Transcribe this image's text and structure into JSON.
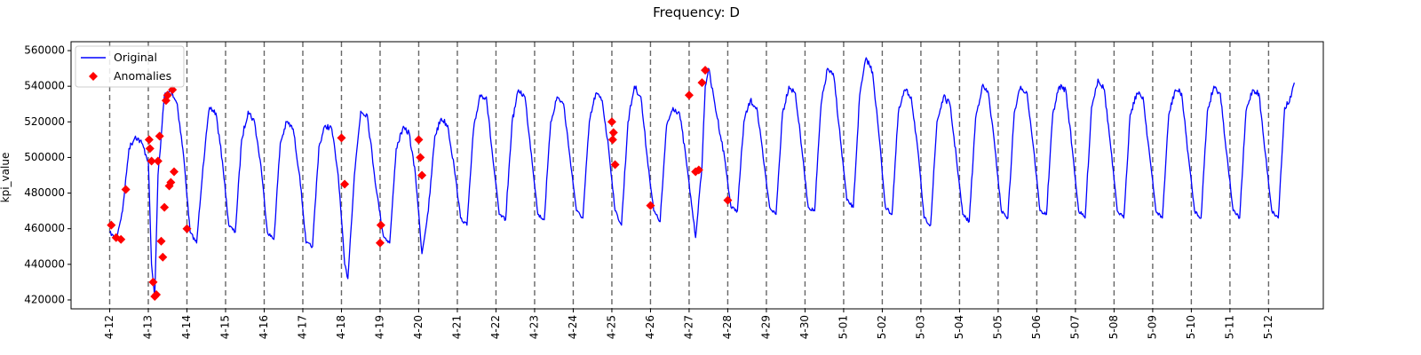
{
  "chart_data": {
    "type": "line",
    "title": "Frequency: D",
    "xlabel": "",
    "ylabel": "kpi_value",
    "ylim": [
      415000,
      565000
    ],
    "xlim": [
      "2023-04-11T00:00",
      "2023-05-13T10:00"
    ],
    "y_ticks": [
      420000,
      440000,
      460000,
      480000,
      500000,
      520000,
      540000,
      560000
    ],
    "y_tick_labels": [
      "420000",
      "440000",
      "460000",
      "480000",
      "500000",
      "520000",
      "540000",
      "560000"
    ],
    "x_ticks": [
      "2023-04-12",
      "2023-04-13",
      "2023-04-14",
      "2023-04-15",
      "2023-04-16",
      "2023-04-17",
      "2023-04-18",
      "2023-04-19",
      "2023-04-20",
      "2023-04-21",
      "2023-04-22",
      "2023-04-23",
      "2023-04-24",
      "2023-04-25",
      "2023-04-26",
      "2023-04-27",
      "2023-04-28",
      "2023-04-29",
      "2023-04-30",
      "2023-05-01",
      "2023-05-02",
      "2023-05-03",
      "2023-05-04",
      "2023-05-05",
      "2023-05-06",
      "2023-05-07",
      "2023-05-08",
      "2023-05-09",
      "2023-05-10",
      "2023-05-11",
      "2023-05-12"
    ],
    "x_tick_labels": [
      "4-12",
      "4-13",
      "4-14",
      "4-15",
      "4-16",
      "4-17",
      "4-18",
      "4-19",
      "4-20",
      "4-21",
      "4-22",
      "4-23",
      "4-24",
      "4-25",
      "4-26",
      "4-27",
      "4-28",
      "4-29",
      "4-30",
      "5-01",
      "5-02",
      "5-03",
      "5-04",
      "5-05",
      "5-06",
      "5-07",
      "5-08",
      "5-09",
      "5-10",
      "5-11",
      "5-12"
    ],
    "vertical_lines": "dashed gray at every day",
    "grid": false,
    "legend": {
      "placement": "top-left",
      "entries": [
        "Original",
        "Anomalies"
      ]
    },
    "colors": {
      "original": "#0000ff",
      "anomalies": "#ff0000",
      "vlines": "#666666"
    },
    "series": [
      {
        "name": "Original",
        "type": "line",
        "points": [
          [
            "2023-04-12T00:00",
            458000
          ],
          [
            "2023-04-12T04:00",
            454000
          ],
          [
            "2023-04-12T08:00",
            470000
          ],
          [
            "2023-04-12T12:00",
            505000
          ],
          [
            "2023-04-12T16:00",
            512000
          ],
          [
            "2023-04-12T20:00",
            508000
          ],
          [
            "2023-04-13T00:00",
            498000
          ],
          [
            "2023-04-13T02:00",
            440000
          ],
          [
            "2023-04-13T04:00",
            421000
          ],
          [
            "2023-04-13T06:00",
            490000
          ],
          [
            "2023-04-13T08:00",
            512000
          ],
          [
            "2023-04-13T10:00",
            535000
          ],
          [
            "2023-04-13T14:00",
            538000
          ],
          [
            "2023-04-13T18:00",
            530000
          ],
          [
            "2023-04-13T22:00",
            500000
          ],
          [
            "2023-04-14T02:00",
            458000
          ],
          [
            "2023-04-14T06:00",
            452000
          ],
          [
            "2023-04-14T10:00",
            495000
          ],
          [
            "2023-04-14T14:00",
            528000
          ],
          [
            "2023-04-14T18:00",
            525000
          ],
          [
            "2023-04-14T22:00",
            498000
          ],
          [
            "2023-04-15T02:00",
            462000
          ],
          [
            "2023-04-15T06:00",
            458000
          ],
          [
            "2023-04-15T10:00",
            510000
          ],
          [
            "2023-04-15T14:00",
            526000
          ],
          [
            "2023-04-15T18:00",
            520000
          ],
          [
            "2023-04-15T22:00",
            495000
          ],
          [
            "2023-04-16T02:00",
            458000
          ],
          [
            "2023-04-16T06:00",
            454000
          ],
          [
            "2023-04-16T10:00",
            508000
          ],
          [
            "2023-04-16T14:00",
            520000
          ],
          [
            "2023-04-16T18:00",
            516000
          ],
          [
            "2023-04-16T22:00",
            490000
          ],
          [
            "2023-04-17T02:00",
            452000
          ],
          [
            "2023-04-17T06:00",
            450000
          ],
          [
            "2023-04-17T10:00",
            506000
          ],
          [
            "2023-04-17T14:00",
            518000
          ],
          [
            "2023-04-17T18:00",
            516000
          ],
          [
            "2023-04-17T22:00",
            490000
          ],
          [
            "2023-04-18T02:00",
            440000
          ],
          [
            "2023-04-18T04:00",
            432000
          ],
          [
            "2023-04-18T08:00",
            490000
          ],
          [
            "2023-04-18T12:00",
            526000
          ],
          [
            "2023-04-18T16:00",
            524000
          ],
          [
            "2023-04-18T22:00",
            480000
          ],
          [
            "2023-04-19T02:00",
            456000
          ],
          [
            "2023-04-19T06:00",
            452000
          ],
          [
            "2023-04-19T10:00",
            505000
          ],
          [
            "2023-04-19T14:00",
            516000
          ],
          [
            "2023-04-19T18:00",
            514000
          ],
          [
            "2023-04-19T22:00",
            490000
          ],
          [
            "2023-04-20T02:00",
            446000
          ],
          [
            "2023-04-20T06:00",
            470000
          ],
          [
            "2023-04-20T10:00",
            512000
          ],
          [
            "2023-04-20T14:00",
            522000
          ],
          [
            "2023-04-20T18:00",
            518000
          ],
          [
            "2023-04-20T22:00",
            495000
          ],
          [
            "2023-04-21T02:00",
            466000
          ],
          [
            "2023-04-21T06:00",
            462000
          ],
          [
            "2023-04-21T10:00",
            515000
          ],
          [
            "2023-04-21T14:00",
            535000
          ],
          [
            "2023-04-21T18:00",
            534000
          ],
          [
            "2023-04-21T22:00",
            500000
          ],
          [
            "2023-04-22T02:00",
            468000
          ],
          [
            "2023-04-22T06:00",
            465000
          ],
          [
            "2023-04-22T10:00",
            520000
          ],
          [
            "2023-04-22T14:00",
            538000
          ],
          [
            "2023-04-22T18:00",
            534000
          ],
          [
            "2023-04-22T22:00",
            502000
          ],
          [
            "2023-04-23T02:00",
            468000
          ],
          [
            "2023-04-23T06:00",
            465000
          ],
          [
            "2023-04-23T10:00",
            520000
          ],
          [
            "2023-04-23T14:00",
            534000
          ],
          [
            "2023-04-23T18:00",
            530000
          ],
          [
            "2023-04-23T22:00",
            500000
          ],
          [
            "2023-04-24T02:00",
            470000
          ],
          [
            "2023-04-24T06:00",
            466000
          ],
          [
            "2023-04-24T10:00",
            520000
          ],
          [
            "2023-04-24T14:00",
            536000
          ],
          [
            "2023-04-24T18:00",
            532000
          ],
          [
            "2023-04-24T22:00",
            505000
          ],
          [
            "2023-04-25T02:00",
            470000
          ],
          [
            "2023-04-25T06:00",
            462000
          ],
          [
            "2023-04-25T10:00",
            520000
          ],
          [
            "2023-04-25T14:00",
            540000
          ],
          [
            "2023-04-25T18:00",
            534000
          ],
          [
            "2023-04-25T22:00",
            500000
          ],
          [
            "2023-04-26T02:00",
            470000
          ],
          [
            "2023-04-26T06:00",
            464000
          ],
          [
            "2023-04-26T10:00",
            518000
          ],
          [
            "2023-04-26T14:00",
            528000
          ],
          [
            "2023-04-26T18:00",
            525000
          ],
          [
            "2023-04-26T22:00",
            500000
          ],
          [
            "2023-04-27T02:00",
            470000
          ],
          [
            "2023-04-27T04:00",
            455000
          ],
          [
            "2023-04-27T08:00",
            495000
          ],
          [
            "2023-04-27T10:00",
            540000
          ],
          [
            "2023-04-27T12:00",
            550000
          ],
          [
            "2023-04-27T16:00",
            530000
          ],
          [
            "2023-04-27T22:00",
            500000
          ],
          [
            "2023-04-28T02:00",
            472000
          ],
          [
            "2023-04-28T06:00",
            470000
          ],
          [
            "2023-04-28T10:00",
            520000
          ],
          [
            "2023-04-28T14:00",
            532000
          ],
          [
            "2023-04-28T18:00",
            528000
          ],
          [
            "2023-04-28T22:00",
            500000
          ],
          [
            "2023-04-29T02:00",
            472000
          ],
          [
            "2023-04-29T06:00",
            468000
          ],
          [
            "2023-04-29T10:00",
            525000
          ],
          [
            "2023-04-29T14:00",
            540000
          ],
          [
            "2023-04-29T18:00",
            536000
          ],
          [
            "2023-04-29T22:00",
            505000
          ],
          [
            "2023-04-30T02:00",
            472000
          ],
          [
            "2023-04-30T06:00",
            470000
          ],
          [
            "2023-04-30T10:00",
            530000
          ],
          [
            "2023-04-30T14:00",
            550000
          ],
          [
            "2023-04-30T18:00",
            545000
          ],
          [
            "2023-04-30T22:00",
            510000
          ],
          [
            "2023-05-01T02:00",
            476000
          ],
          [
            "2023-05-01T06:00",
            472000
          ],
          [
            "2023-05-01T10:00",
            535000
          ],
          [
            "2023-05-01T14:00",
            556000
          ],
          [
            "2023-05-01T18:00",
            548000
          ],
          [
            "2023-05-01T22:00",
            512000
          ],
          [
            "2023-05-02T02:00",
            472000
          ],
          [
            "2023-05-02T06:00",
            468000
          ],
          [
            "2023-05-02T10:00",
            525000
          ],
          [
            "2023-05-02T14:00",
            538000
          ],
          [
            "2023-05-02T18:00",
            534000
          ],
          [
            "2023-05-02T22:00",
            505000
          ],
          [
            "2023-05-03T02:00",
            466000
          ],
          [
            "2023-05-03T06:00",
            462000
          ],
          [
            "2023-05-03T10:00",
            520000
          ],
          [
            "2023-05-03T14:00",
            534000
          ],
          [
            "2023-05-03T18:00",
            530000
          ],
          [
            "2023-05-03T22:00",
            500000
          ],
          [
            "2023-05-04T02:00",
            468000
          ],
          [
            "2023-05-04T06:00",
            464000
          ],
          [
            "2023-05-04T10:00",
            522000
          ],
          [
            "2023-05-04T14:00",
            540000
          ],
          [
            "2023-05-04T18:00",
            536000
          ],
          [
            "2023-05-04T22:00",
            505000
          ],
          [
            "2023-05-05T02:00",
            470000
          ],
          [
            "2023-05-05T06:00",
            466000
          ],
          [
            "2023-05-05T10:00",
            525000
          ],
          [
            "2023-05-05T14:00",
            540000
          ],
          [
            "2023-05-05T18:00",
            536000
          ],
          [
            "2023-05-05T22:00",
            505000
          ],
          [
            "2023-05-06T02:00",
            470000
          ],
          [
            "2023-05-06T06:00",
            468000
          ],
          [
            "2023-05-06T10:00",
            525000
          ],
          [
            "2023-05-06T14:00",
            540000
          ],
          [
            "2023-05-06T18:00",
            538000
          ],
          [
            "2023-05-06T22:00",
            505000
          ],
          [
            "2023-05-07T02:00",
            470000
          ],
          [
            "2023-05-07T06:00",
            466000
          ],
          [
            "2023-05-07T10:00",
            528000
          ],
          [
            "2023-05-07T14:00",
            544000
          ],
          [
            "2023-05-07T18:00",
            538000
          ],
          [
            "2023-05-07T22:00",
            505000
          ],
          [
            "2023-05-08T02:00",
            470000
          ],
          [
            "2023-05-08T06:00",
            466000
          ],
          [
            "2023-05-08T10:00",
            524000
          ],
          [
            "2023-05-08T14:00",
            536000
          ],
          [
            "2023-05-08T18:00",
            534000
          ],
          [
            "2023-05-08T22:00",
            502000
          ],
          [
            "2023-05-09T02:00",
            470000
          ],
          [
            "2023-05-09T06:00",
            466000
          ],
          [
            "2023-05-09T10:00",
            524000
          ],
          [
            "2023-05-09T14:00",
            538000
          ],
          [
            "2023-05-09T18:00",
            536000
          ],
          [
            "2023-05-09T22:00",
            502000
          ],
          [
            "2023-05-10T02:00",
            470000
          ],
          [
            "2023-05-10T06:00",
            466000
          ],
          [
            "2023-05-10T10:00",
            526000
          ],
          [
            "2023-05-10T14:00",
            540000
          ],
          [
            "2023-05-10T18:00",
            536000
          ],
          [
            "2023-05-10T22:00",
            502000
          ],
          [
            "2023-05-11T02:00",
            470000
          ],
          [
            "2023-05-11T06:00",
            466000
          ],
          [
            "2023-05-11T10:00",
            526000
          ],
          [
            "2023-05-11T14:00",
            538000
          ],
          [
            "2023-05-11T18:00",
            536000
          ],
          [
            "2023-05-11T22:00",
            502000
          ],
          [
            "2023-05-12T02:00",
            470000
          ],
          [
            "2023-05-12T06:00",
            466000
          ],
          [
            "2023-05-12T10:00",
            528000
          ],
          [
            "2023-05-12T14:00",
            534000
          ],
          [
            "2023-05-12T16:00",
            542000
          ]
        ]
      },
      {
        "name": "Anomalies",
        "type": "scatter",
        "marker": "diamond",
        "points": [
          [
            "2023-04-12T01:00",
            462000
          ],
          [
            "2023-04-12T04:00",
            455000
          ],
          [
            "2023-04-12T07:00",
            454000
          ],
          [
            "2023-04-12T10:00",
            482000
          ],
          [
            "2023-04-13T00:30",
            510000
          ],
          [
            "2023-04-13T01:00",
            505000
          ],
          [
            "2023-04-13T02:00",
            498000
          ],
          [
            "2023-04-13T03:00",
            430000
          ],
          [
            "2023-04-13T04:00",
            422000
          ],
          [
            "2023-04-13T05:00",
            423000
          ],
          [
            "2023-04-13T06:00",
            498000
          ],
          [
            "2023-04-13T07:00",
            512000
          ],
          [
            "2023-04-13T08:00",
            453000
          ],
          [
            "2023-04-13T09:00",
            444000
          ],
          [
            "2023-04-13T10:00",
            472000
          ],
          [
            "2023-04-13T11:00",
            532000
          ],
          [
            "2023-04-13T12:00",
            535000
          ],
          [
            "2023-04-13T13:00",
            484000
          ],
          [
            "2023-04-13T14:00",
            486000
          ],
          [
            "2023-04-13T15:00",
            538000
          ],
          [
            "2023-04-13T16:00",
            492000
          ],
          [
            "2023-04-14T00:00",
            460000
          ],
          [
            "2023-04-18T00:00",
            511000
          ],
          [
            "2023-04-18T02:00",
            485000
          ],
          [
            "2023-04-19T00:00",
            452000
          ],
          [
            "2023-04-19T00:30",
            462000
          ],
          [
            "2023-04-20T00:00",
            510000
          ],
          [
            "2023-04-20T01:00",
            500000
          ],
          [
            "2023-04-20T02:00",
            490000
          ],
          [
            "2023-04-25T00:00",
            520000
          ],
          [
            "2023-04-25T00:30",
            510000
          ],
          [
            "2023-04-25T01:00",
            514000
          ],
          [
            "2023-04-25T02:00",
            496000
          ],
          [
            "2023-04-26T00:00",
            473000
          ],
          [
            "2023-04-27T00:00",
            535000
          ],
          [
            "2023-04-27T04:00",
            492000
          ],
          [
            "2023-04-27T06:00",
            493000
          ],
          [
            "2023-04-27T08:00",
            542000
          ],
          [
            "2023-04-27T10:00",
            549000
          ],
          [
            "2023-04-28T00:00",
            476000
          ]
        ]
      }
    ]
  }
}
